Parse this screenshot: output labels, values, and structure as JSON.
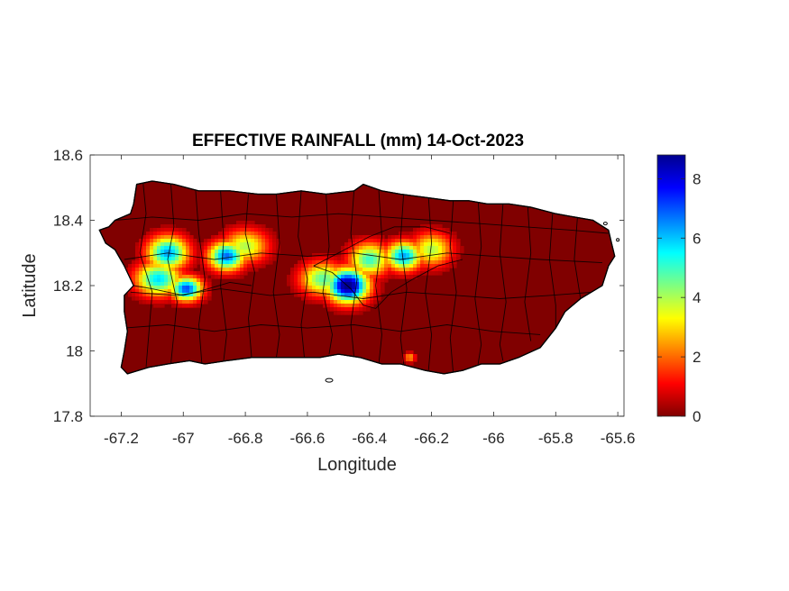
{
  "chart_data": {
    "type": "heatmap",
    "title": "EFFECTIVE RAINFALL (mm) 14-Oct-2023",
    "xlabel": "Longitude",
    "ylabel": "Latitude",
    "xlim": [
      -67.3,
      -65.58
    ],
    "ylim": [
      17.8,
      18.6
    ],
    "xticks": [
      -67.2,
      -67,
      -66.8,
      -66.6,
      -66.4,
      -66.2,
      -66,
      -65.8,
      -65.6
    ],
    "yticks": [
      17.8,
      18,
      18.2,
      18.4,
      18.6
    ],
    "colorbar": {
      "colormap": "jet",
      "range": [
        0,
        8.8
      ],
      "ticks": [
        0,
        2,
        4,
        6,
        8
      ]
    },
    "grid": false,
    "background_value": 0,
    "rain_cells": [
      {
        "lon": -67.05,
        "lat": 18.3,
        "value": 6.0,
        "sx": 0.045,
        "sy": 0.035
      },
      {
        "lon": -67.08,
        "lat": 18.22,
        "value": 5.5,
        "sx": 0.05,
        "sy": 0.035
      },
      {
        "lon": -66.99,
        "lat": 18.19,
        "value": 6.8,
        "sx": 0.035,
        "sy": 0.025
      },
      {
        "lon": -66.86,
        "lat": 18.29,
        "value": 6.5,
        "sx": 0.04,
        "sy": 0.03
      },
      {
        "lon": -66.8,
        "lat": 18.32,
        "value": 3.8,
        "sx": 0.05,
        "sy": 0.035
      },
      {
        "lon": -66.47,
        "lat": 18.2,
        "value": 8.8,
        "sx": 0.045,
        "sy": 0.035
      },
      {
        "lon": -66.55,
        "lat": 18.22,
        "value": 4.5,
        "sx": 0.05,
        "sy": 0.035
      },
      {
        "lon": -66.4,
        "lat": 18.28,
        "value": 4.8,
        "sx": 0.045,
        "sy": 0.035
      },
      {
        "lon": -66.29,
        "lat": 18.29,
        "value": 6.0,
        "sx": 0.04,
        "sy": 0.03
      },
      {
        "lon": -66.2,
        "lat": 18.31,
        "value": 3.8,
        "sx": 0.045,
        "sy": 0.035
      },
      {
        "lon": -66.27,
        "lat": 17.98,
        "value": 2.5,
        "sx": 0.012,
        "sy": 0.01
      }
    ]
  }
}
